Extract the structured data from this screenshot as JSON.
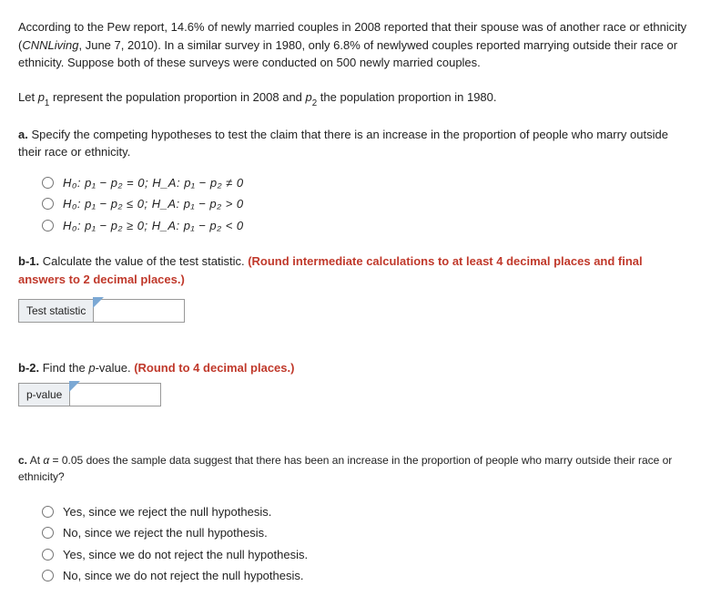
{
  "intro": {
    "line1_pre": "According to the Pew report, 14.6% of newly married couples in 2008 reported that their spouse was of another race or ethnicity (",
    "cite": "CNNLiving",
    "line1_post": ", June 7, 2010). In a similar survey in 1980, only 6.8% of newlywed couples reported marrying outside their race or ethnicity. Suppose both of these surveys were conducted on 500 newly married couples."
  },
  "let_line": {
    "pre": "Let ",
    "p1": "p",
    "p1sub": "1",
    "mid": " represent the population proportion in 2008 and ",
    "p2": "p",
    "p2sub": "2",
    "post": " the population proportion in 1980."
  },
  "a": {
    "label": "a.",
    "text": " Specify the competing hypotheses to test the claim that there is an increase in the proportion of people who marry outside their race or ethnicity."
  },
  "hyp_opts": [
    "H₀: p₁ − p₂ = 0;  H_A: p₁ − p₂ ≠ 0",
    "H₀: p₁ − p₂ ≤ 0;  H_A: p₁ − p₂ > 0",
    "H₀: p₁ − p₂ ≥ 0;  H_A: p₁ − p₂ < 0"
  ],
  "b1": {
    "label": "b-1.",
    "text": " Calculate the value of the test statistic. ",
    "red": "(Round intermediate calculations to at least 4 decimal places and final answers to 2 decimal places.)",
    "cell_label": "Test statistic"
  },
  "b2": {
    "label": "b-2.",
    "pre": " Find the ",
    "pval": "p",
    "post": "-value.  ",
    "red": "(Round to 4 decimal places.)",
    "cell_label": "p-value"
  },
  "c": {
    "label": "c.",
    "pre": " At  ",
    "alpha": "α",
    "eq": " = 0.05 ",
    "text": "does the sample data suggest that there has been an increase in the proportion of people who marry outside their race or ethnicity?",
    "opts": [
      "Yes, since we reject the null hypothesis.",
      "No, since we reject the null hypothesis.",
      "Yes, since we do not reject the null hypothesis.",
      "No, since we do not reject the null hypothesis."
    ]
  }
}
